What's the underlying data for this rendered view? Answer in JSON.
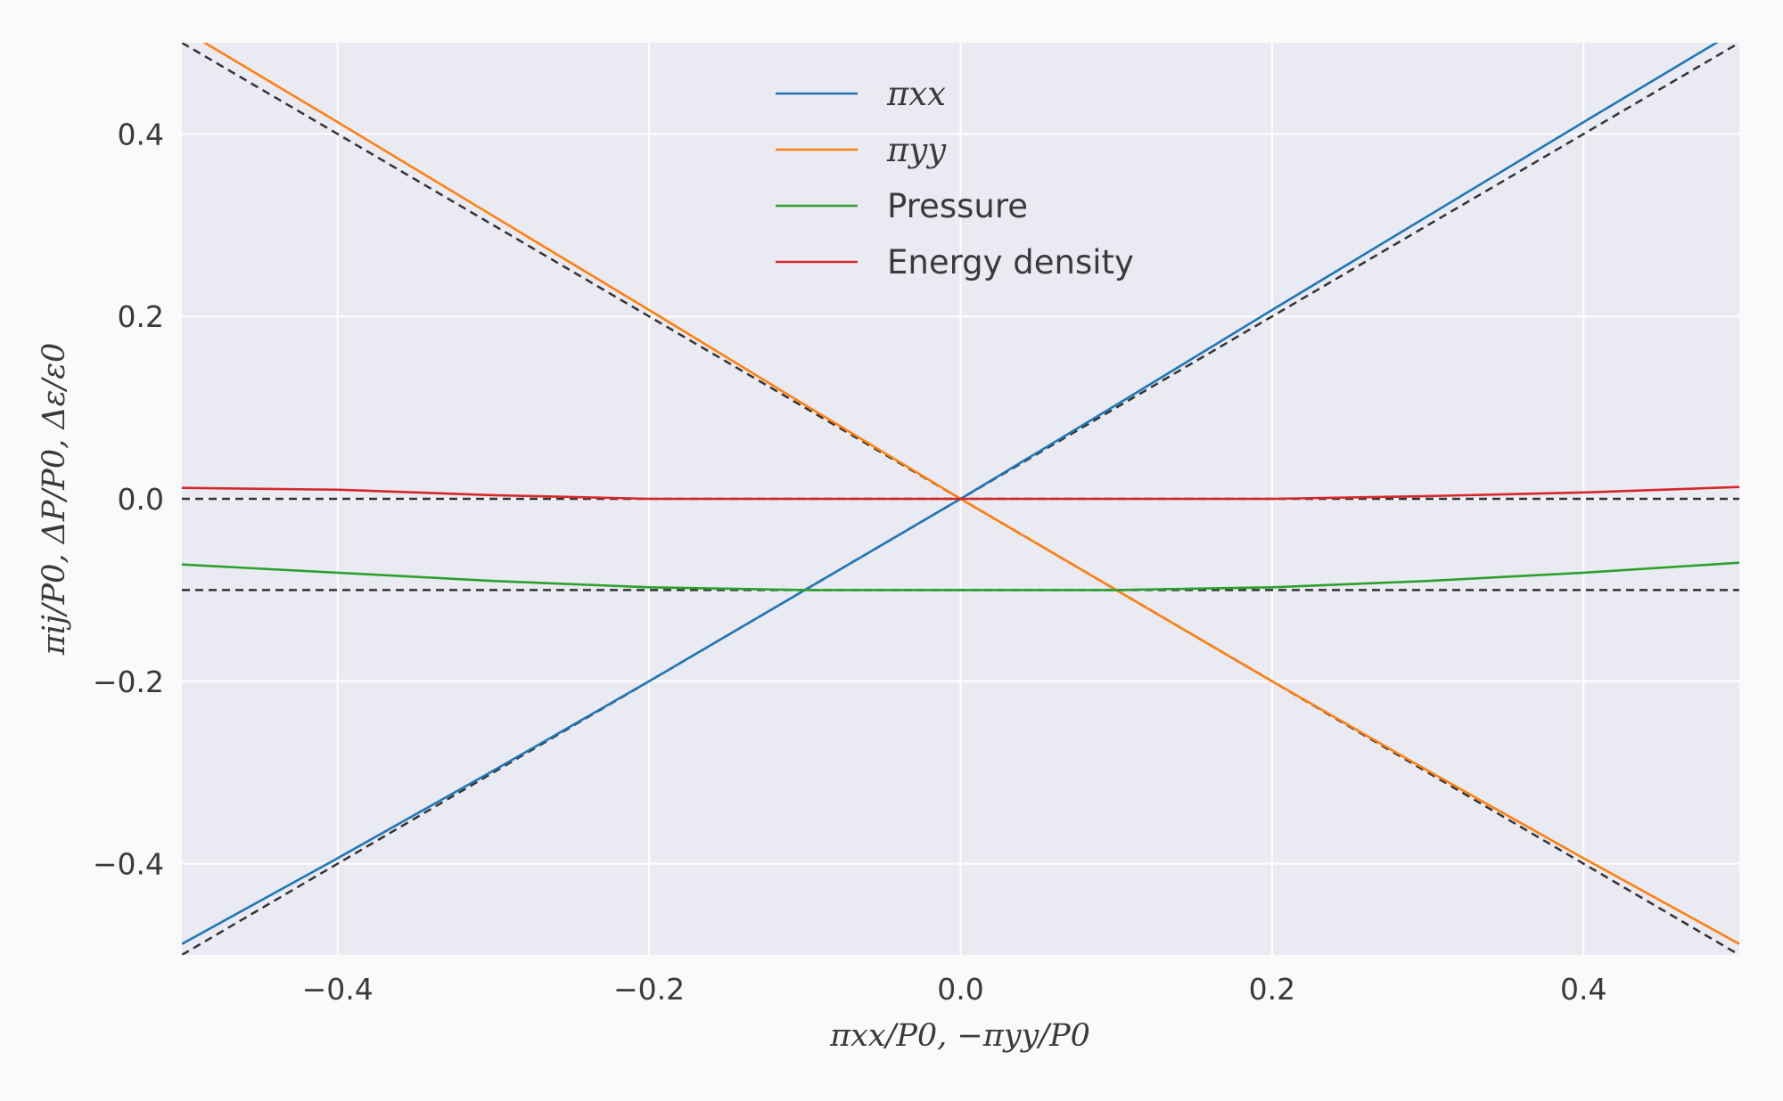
{
  "chart_data": {
    "type": "line",
    "title": "",
    "xlabel": "πxx/P0,  −πyy/P0",
    "ylabel": "πij/P0,  ΔP/P0,  Δε/ε0",
    "xlim": [
      -0.5,
      0.5
    ],
    "ylim": [
      -0.5,
      0.5
    ],
    "grid": true,
    "legend_position": "upper-center",
    "background_color": "#eaeaf2",
    "xticks": [
      -0.4,
      -0.2,
      0.0,
      0.2,
      0.4
    ],
    "xtick_labels": [
      "−0.4",
      "−0.2",
      "0.0",
      "0.2",
      "0.4"
    ],
    "yticks": [
      -0.4,
      -0.2,
      0.0,
      0.2,
      0.4
    ],
    "ytick_labels": [
      "−0.4",
      "−0.2",
      "0.0",
      "0.2",
      "0.4"
    ],
    "x": [
      -0.5,
      -0.4,
      -0.3,
      -0.2,
      -0.1,
      0.0,
      0.1,
      0.2,
      0.3,
      0.4,
      0.5
    ],
    "series": [
      {
        "name": "πxx",
        "color": "#1f77b4",
        "style": "solid",
        "values": [
          -0.488,
          -0.394,
          -0.298,
          -0.2,
          -0.1,
          0.0,
          0.103,
          0.207,
          0.31,
          0.413,
          0.515
        ]
      },
      {
        "name": "πyy",
        "color": "#ff7f0e",
        "style": "solid",
        "values": [
          0.515,
          0.413,
          0.31,
          0.207,
          0.103,
          0.0,
          -0.1,
          -0.2,
          -0.298,
          -0.394,
          -0.488
        ]
      },
      {
        "name": "Pressure",
        "color": "#2ca02c",
        "style": "solid",
        "values": [
          -0.072,
          -0.081,
          -0.09,
          -0.097,
          -0.1,
          -0.1,
          -0.1,
          -0.097,
          -0.09,
          -0.081,
          -0.07
        ]
      },
      {
        "name": "Energy density",
        "color": "#d62728",
        "style": "solid",
        "values": [
          0.012,
          0.01,
          0.004,
          0.0,
          0.0,
          0.0,
          0.0,
          0.0,
          0.003,
          0.007,
          0.013
        ]
      }
    ],
    "reference_lines": [
      {
        "color": "#333333",
        "style": "dashed",
        "points": [
          [
            -0.5,
            -0.5
          ],
          [
            0.5,
            0.5
          ]
        ]
      },
      {
        "color": "#333333",
        "style": "dashed",
        "points": [
          [
            -0.5,
            0.5
          ],
          [
            0.5,
            -0.5
          ]
        ]
      },
      {
        "color": "#333333",
        "style": "dashed",
        "points": [
          [
            -0.5,
            0.0
          ],
          [
            0.5,
            0.0
          ]
        ]
      },
      {
        "color": "#333333",
        "style": "dashed",
        "points": [
          [
            -0.5,
            -0.1
          ],
          [
            0.5,
            -0.1
          ]
        ]
      }
    ]
  }
}
